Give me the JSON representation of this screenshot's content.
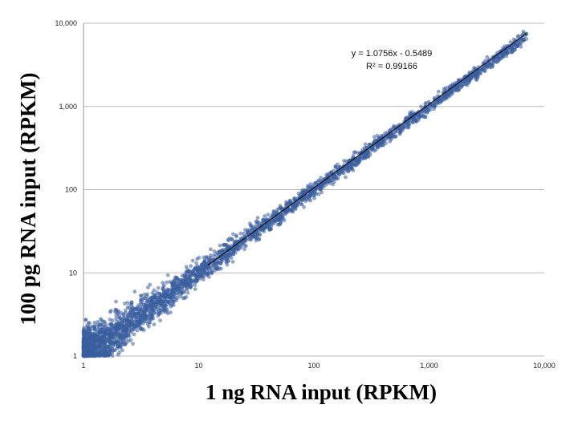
{
  "chart_data": {
    "type": "scatter",
    "title": "",
    "xlabel": "1 ng RNA input (RPKM)",
    "ylabel": "100 pg RNA input (RPKM)",
    "x_scale": "log10",
    "y_scale": "log10",
    "xlim": [
      1,
      10000
    ],
    "ylim": [
      1,
      10000
    ],
    "x_ticks": [
      "1",
      "10",
      "100",
      "1,000",
      "10,000"
    ],
    "y_ticks": [
      "1",
      "10",
      "100",
      "1,000",
      "10,000"
    ],
    "grid": "horizontal",
    "legend": "none",
    "marker_color": "#3b5f9e",
    "trendline": {
      "slope": 1.0756,
      "intercept": -0.5489,
      "x_range": [
        12,
        7000
      ],
      "color": "#000000"
    },
    "annotations": {
      "equation": "y = 1.0756x - 0.5489",
      "r2": "R² = 0.99166"
    },
    "point_distribution": {
      "description_of_depiction": "dense cloud along y=x",
      "samples": [
        [
          1,
          1.2
        ],
        [
          1.5,
          1.4
        ],
        [
          2,
          2.1
        ],
        [
          3,
          2.6
        ],
        [
          5,
          5.3
        ],
        [
          8,
          7.4
        ],
        [
          12,
          12.5
        ],
        [
          20,
          19
        ],
        [
          35,
          37
        ],
        [
          60,
          57
        ],
        [
          100,
          104
        ],
        [
          200,
          210
        ],
        [
          400,
          420
        ],
        [
          800,
          840
        ],
        [
          1500,
          1580
        ],
        [
          3000,
          3180
        ],
        [
          7000,
          7400
        ]
      ]
    }
  }
}
